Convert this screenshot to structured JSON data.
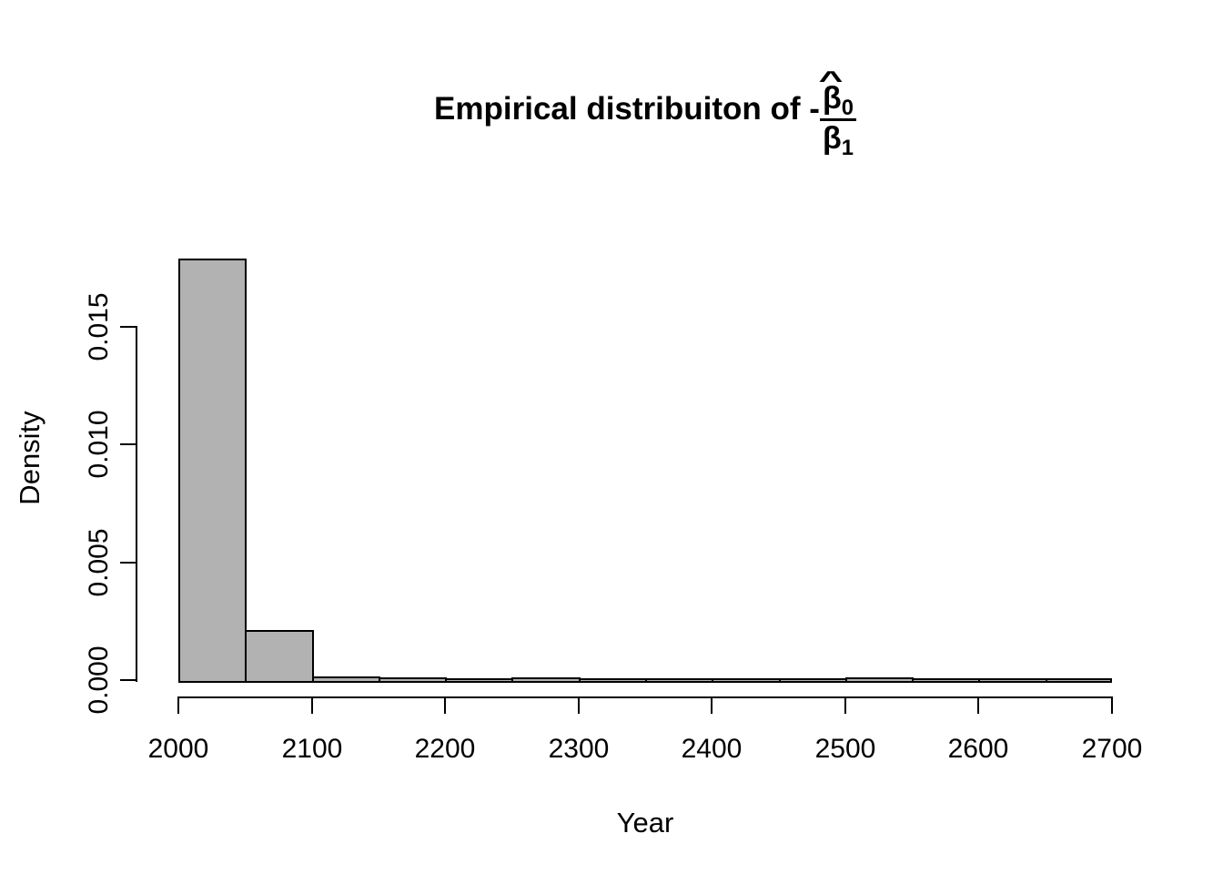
{
  "title": {
    "prefix": "Empirical distribuiton of -",
    "hat": "^",
    "numerator_symbol": "β",
    "numerator_subscript": "0",
    "denominator_symbol": "β",
    "denominator_subscript": "1"
  },
  "axes": {
    "x_label": "Year",
    "y_label": "Density"
  },
  "chart_data": {
    "type": "bar",
    "subtype": "histogram",
    "title": "Empirical distribuiton of -β̂0/β1",
    "xlabel": "Year",
    "ylabel": "Density",
    "xlim": [
      2000,
      2700
    ],
    "ylim": [
      0,
      0.015
    ],
    "grid": false,
    "legend": false,
    "bar_fill": "#b2b2b2",
    "bar_border": "#000000",
    "bin_width": 50,
    "bin_starts": [
      2000,
      2050,
      2100,
      2150,
      2200,
      2250,
      2300,
      2350,
      2400,
      2450,
      2500,
      2550,
      2600,
      2650
    ],
    "densities": [
      0.01785,
      0.0021,
      0.00012,
      8e-05,
      4e-05,
      6e-05,
      2e-05,
      2e-05,
      2e-05,
      2e-05,
      6e-05,
      2e-05,
      2e-05,
      4e-05
    ],
    "x_tick_values": [
      2000,
      2100,
      2200,
      2300,
      2400,
      2500,
      2600,
      2700
    ],
    "x_tick_labels": [
      "2000",
      "2100",
      "2200",
      "2300",
      "2400",
      "2500",
      "2600",
      "2700"
    ],
    "y_tick_values": [
      0,
      0.005,
      0.01,
      0.015
    ],
    "y_tick_labels": [
      "0.000",
      "0.005",
      "0.010",
      "0.015"
    ]
  }
}
